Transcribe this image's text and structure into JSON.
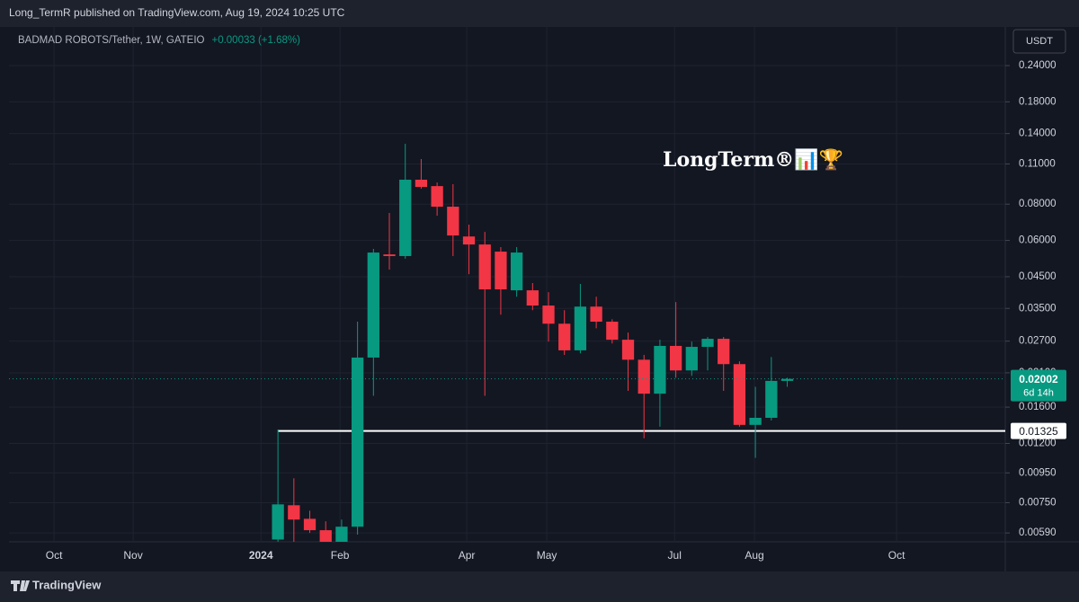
{
  "header": {
    "published": "Long_TermR published on TradingView.com, Aug 19, 2024 10:25 UTC"
  },
  "footer": {
    "brand": "TradingView"
  },
  "chart_data": {
    "type": "candlestick",
    "title": "BADMAD ROBOTS/Tether, 1W, GATEIO",
    "change": "+0.00033 (+1.68%)",
    "currency": "USDT",
    "annotation": "LongTerm®📊🏆",
    "log_scale": true,
    "grid": true,
    "up_color": "#089981",
    "down_color": "#f23645",
    "open": [
      0.0056,
      0.00735,
      0.0066,
      0.00603,
      0.0055,
      0.0062,
      0.0237,
      0.0537,
      0.053,
      0.0971,
      0.0923,
      0.0784,
      0.0619,
      0.0581,
      0.0549,
      0.0404,
      0.0404,
      0.0358,
      0.031,
      0.0251,
      0.0355,
      0.0315,
      0.0273,
      0.0233,
      0.0178,
      0.026,
      0.0214,
      0.0258,
      0.0275,
      0.0225,
      0.0139,
      0.0147,
      0.0197
    ],
    "high": [
      0.0134,
      0.0091,
      0.00704,
      0.00647,
      0.00656,
      0.0315,
      0.0561,
      0.0746,
      0.1291,
      0.1144,
      0.095,
      0.0937,
      0.068,
      0.0642,
      0.0569,
      0.0569,
      0.0428,
      0.0398,
      0.0345,
      0.0425,
      0.0384,
      0.0321,
      0.0289,
      0.0242,
      0.0273,
      0.0368,
      0.0269,
      0.0279,
      0.0279,
      0.023,
      0.0188,
      0.0238,
      0.0202
    ],
    "low": [
      0.0055,
      0.0055,
      0.0059,
      0.0055,
      0.0055,
      0.00582,
      0.0175,
      0.0476,
      0.0519,
      0.0904,
      0.073,
      0.053,
      0.0459,
      0.0175,
      0.0333,
      0.0384,
      0.0345,
      0.0269,
      0.0242,
      0.0245,
      0.0299,
      0.0265,
      0.0182,
      0.0125,
      0.0137,
      0.0202,
      0.0205,
      0.0214,
      0.0182,
      0.0137,
      0.0107,
      0.0144,
      0.0188
    ],
    "close": [
      0.0074,
      0.00656,
      0.00603,
      0.0055,
      0.0062,
      0.0237,
      0.0545,
      0.053,
      0.0971,
      0.0917,
      0.0784,
      0.0624,
      0.0581,
      0.0407,
      0.0407,
      0.0545,
      0.0358,
      0.031,
      0.0251,
      0.0355,
      0.0315,
      0.0273,
      0.0233,
      0.0178,
      0.026,
      0.0214,
      0.0258,
      0.0275,
      0.0225,
      0.0139,
      0.0147,
      0.0197,
      0.02002
    ],
    "ylim": [
      0.0055,
      0.326
    ],
    "yticks": [
      {
        "value": 0.24,
        "label": "0.24000"
      },
      {
        "value": 0.18,
        "label": "0.18000"
      },
      {
        "value": 0.14,
        "label": "0.14000"
      },
      {
        "value": 0.11,
        "label": "0.11000"
      },
      {
        "value": 0.08,
        "label": "0.08000"
      },
      {
        "value": 0.06,
        "label": "0.06000"
      },
      {
        "value": 0.045,
        "label": "0.04500"
      },
      {
        "value": 0.035,
        "label": "0.03500"
      },
      {
        "value": 0.027,
        "label": "0.02700"
      },
      {
        "value": 0.021,
        "label": "0.02100"
      },
      {
        "value": 0.016,
        "label": "0.01600"
      },
      {
        "value": 0.012,
        "label": "0.01200"
      },
      {
        "value": 0.0095,
        "label": "0.00950"
      },
      {
        "value": 0.0075,
        "label": "0.00750"
      },
      {
        "value": 0.0059,
        "label": "0.00590"
      }
    ],
    "xlim": [
      -16.9,
      45.7
    ],
    "xticks": [
      {
        "value": -14.07,
        "label": "Oct"
      },
      {
        "value": -9.1,
        "label": "Nov"
      },
      {
        "value": -1.07,
        "label": "2024"
      },
      {
        "value": 3.9,
        "label": "Feb"
      },
      {
        "value": 11.86,
        "label": "Apr"
      },
      {
        "value": 16.89,
        "label": "May"
      },
      {
        "value": 24.92,
        "label": "Jul"
      },
      {
        "value": 29.94,
        "label": "Aug"
      },
      {
        "value": 38.87,
        "label": "Oct"
      }
    ],
    "level": 0.01325,
    "last_price": 0.02002,
    "countdown": "6d 14h"
  }
}
